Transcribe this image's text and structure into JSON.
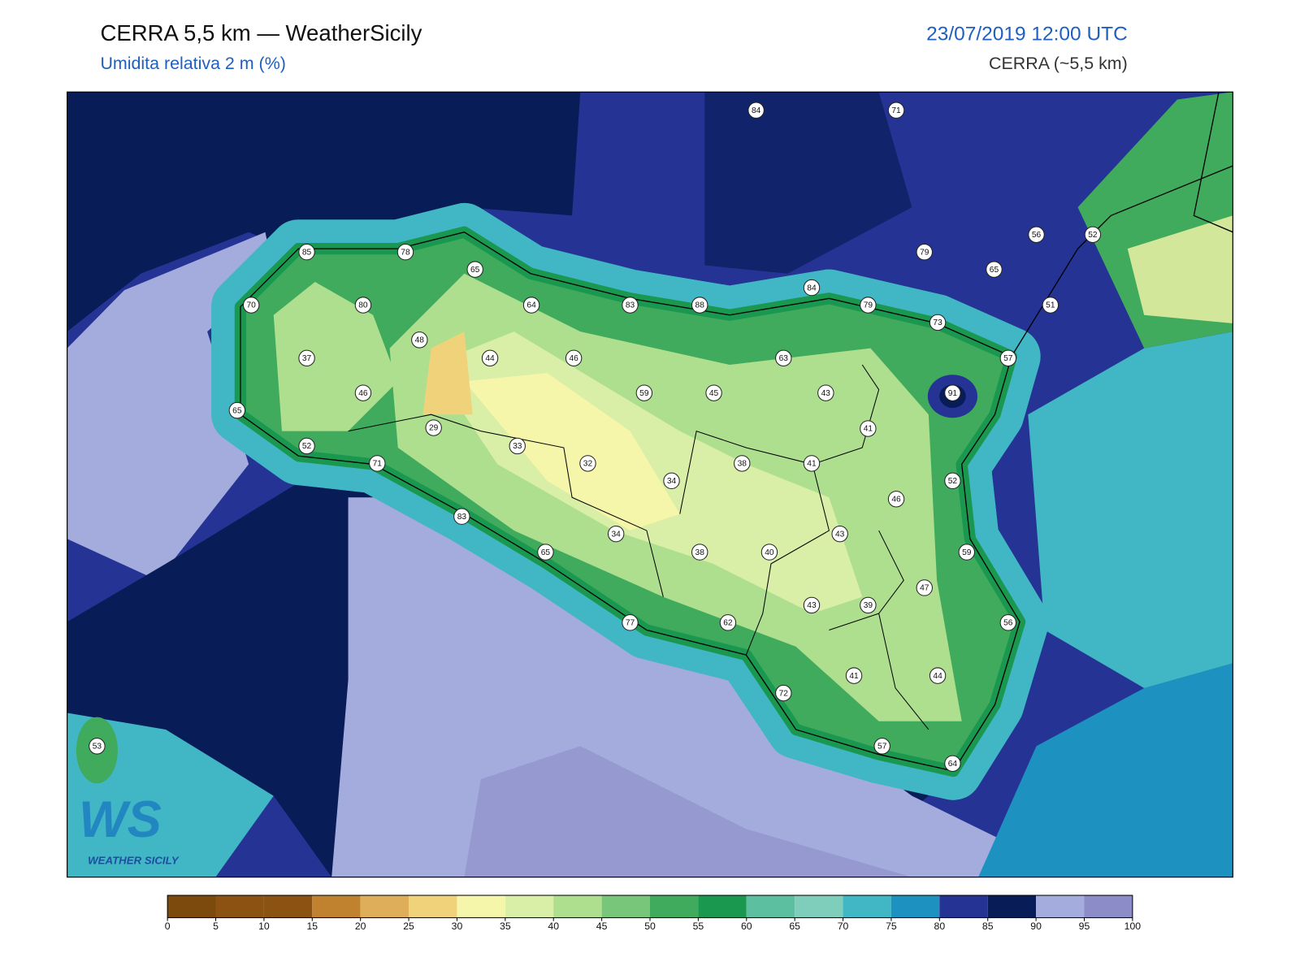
{
  "header": {
    "title": "CERRA 5,5 km — WeatherSicily",
    "subtitle": "Umidita relativa 2 m (%)",
    "datetime": "23/07/2019 12:00 UTC",
    "model": "CERRA (~5,5 km)"
  },
  "stations": [
    84,
    71,
    85,
    78,
    65,
    56,
    52,
    79,
    65,
    70,
    80,
    64,
    83,
    88,
    84,
    79,
    73,
    51,
    48,
    37,
    44,
    46,
    63,
    57,
    46,
    59,
    45,
    43,
    91,
    65,
    29,
    41,
    33,
    52,
    71,
    32,
    38,
    41,
    34,
    52,
    46,
    83,
    34,
    43,
    65,
    38,
    40,
    59,
    47,
    43,
    39,
    77,
    62,
    56,
    41,
    44,
    72,
    53,
    57,
    64
  ],
  "colorbar": {
    "ticks": [
      0,
      5,
      10,
      15,
      20,
      25,
      30,
      35,
      40,
      45,
      50,
      55,
      60,
      65,
      70,
      75,
      80,
      85,
      90,
      95,
      100
    ],
    "colors": [
      "#7b4a0c",
      "#8b5212",
      "#8b5212",
      "#c0822f",
      "#dfae5a",
      "#f0d27a",
      "#f6f6aa",
      "#d9eea6",
      "#addf8f",
      "#78c679",
      "#41ab5d",
      "#1a9850",
      "#5cbfa0",
      "#7fcdbb",
      "#41b6c4",
      "#1d91c0",
      "#253494",
      "#081d58",
      "#a3acdc",
      "#8c8cc8"
    ]
  },
  "logo": {
    "mark": "WS",
    "text": "WEATHER SICILY"
  }
}
